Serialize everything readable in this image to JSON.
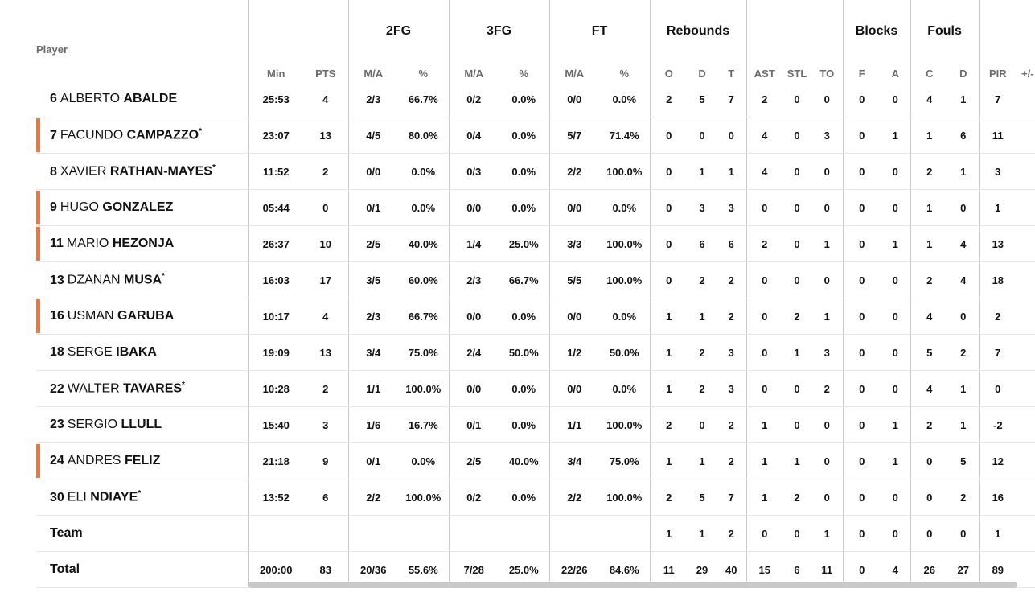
{
  "groups": [
    "2FG",
    "3FG",
    "FT",
    "Rebounds",
    "Blocks",
    "Fouls"
  ],
  "columns": {
    "player": "Player",
    "min": "Min",
    "pts": "PTS",
    "fg2_ma": "M/A",
    "fg2_pct": "%",
    "fg3_ma": "M/A",
    "fg3_pct": "%",
    "ft_ma": "M/A",
    "ft_pct": "%",
    "reb_o": "O",
    "reb_d": "D",
    "reb_t": "T",
    "ast": "AST",
    "stl": "STL",
    "to": "TO",
    "blk_f": "F",
    "blk_a": "A",
    "foul_c": "C",
    "foul_d": "D",
    "pir": "PIR",
    "pm": "+/-"
  },
  "players": [
    {
      "num": "6",
      "first": "ALBERTO",
      "last": "ABALDE",
      "star": "",
      "bar": false,
      "min": "25:53",
      "pts": "4",
      "fg2_ma": "2/3",
      "fg2_pct": "66.7%",
      "fg3_ma": "0/2",
      "fg3_pct": "0.0%",
      "ft_ma": "0/0",
      "ft_pct": "0.0%",
      "reb_o": "2",
      "reb_d": "5",
      "reb_t": "7",
      "ast": "2",
      "stl": "0",
      "to": "0",
      "blk_f": "0",
      "blk_a": "0",
      "foul_c": "4",
      "foul_d": "1",
      "pir": "7"
    },
    {
      "num": "7",
      "first": "FACUNDO",
      "last": "CAMPAZZO",
      "star": "*",
      "bar": true,
      "min": "23:07",
      "pts": "13",
      "fg2_ma": "4/5",
      "fg2_pct": "80.0%",
      "fg3_ma": "0/4",
      "fg3_pct": "0.0%",
      "ft_ma": "5/7",
      "ft_pct": "71.4%",
      "reb_o": "0",
      "reb_d": "0",
      "reb_t": "0",
      "ast": "4",
      "stl": "0",
      "to": "3",
      "blk_f": "0",
      "blk_a": "1",
      "foul_c": "1",
      "foul_d": "6",
      "pir": "11"
    },
    {
      "num": "8",
      "first": "XAVIER",
      "last": "RATHAN-MAYES",
      "star": "*",
      "bar": false,
      "min": "11:52",
      "pts": "2",
      "fg2_ma": "0/0",
      "fg2_pct": "0.0%",
      "fg3_ma": "0/3",
      "fg3_pct": "0.0%",
      "ft_ma": "2/2",
      "ft_pct": "100.0%",
      "reb_o": "0",
      "reb_d": "1",
      "reb_t": "1",
      "ast": "4",
      "stl": "0",
      "to": "0",
      "blk_f": "0",
      "blk_a": "0",
      "foul_c": "2",
      "foul_d": "1",
      "pir": "3"
    },
    {
      "num": "9",
      "first": "HUGO",
      "last": "GONZALEZ",
      "star": "",
      "bar": true,
      "min": "05:44",
      "pts": "0",
      "fg2_ma": "0/1",
      "fg2_pct": "0.0%",
      "fg3_ma": "0/0",
      "fg3_pct": "0.0%",
      "ft_ma": "0/0",
      "ft_pct": "0.0%",
      "reb_o": "0",
      "reb_d": "3",
      "reb_t": "3",
      "ast": "0",
      "stl": "0",
      "to": "0",
      "blk_f": "0",
      "blk_a": "0",
      "foul_c": "1",
      "foul_d": "0",
      "pir": "1"
    },
    {
      "num": "11",
      "first": "MARIO",
      "last": "HEZONJA",
      "star": "",
      "bar": true,
      "min": "26:37",
      "pts": "10",
      "fg2_ma": "2/5",
      "fg2_pct": "40.0%",
      "fg3_ma": "1/4",
      "fg3_pct": "25.0%",
      "ft_ma": "3/3",
      "ft_pct": "100.0%",
      "reb_o": "0",
      "reb_d": "6",
      "reb_t": "6",
      "ast": "2",
      "stl": "0",
      "to": "1",
      "blk_f": "0",
      "blk_a": "1",
      "foul_c": "1",
      "foul_d": "4",
      "pir": "13"
    },
    {
      "num": "13",
      "first": "DZANAN",
      "last": "MUSA",
      "star": "*",
      "bar": false,
      "min": "16:03",
      "pts": "17",
      "fg2_ma": "3/5",
      "fg2_pct": "60.0%",
      "fg3_ma": "2/3",
      "fg3_pct": "66.7%",
      "ft_ma": "5/5",
      "ft_pct": "100.0%",
      "reb_o": "0",
      "reb_d": "2",
      "reb_t": "2",
      "ast": "0",
      "stl": "0",
      "to": "0",
      "blk_f": "0",
      "blk_a": "0",
      "foul_c": "2",
      "foul_d": "4",
      "pir": "18"
    },
    {
      "num": "16",
      "first": "USMAN",
      "last": "GARUBA",
      "star": "",
      "bar": true,
      "min": "10:17",
      "pts": "4",
      "fg2_ma": "2/3",
      "fg2_pct": "66.7%",
      "fg3_ma": "0/0",
      "fg3_pct": "0.0%",
      "ft_ma": "0/0",
      "ft_pct": "0.0%",
      "reb_o": "1",
      "reb_d": "1",
      "reb_t": "2",
      "ast": "0",
      "stl": "2",
      "to": "1",
      "blk_f": "0",
      "blk_a": "0",
      "foul_c": "4",
      "foul_d": "0",
      "pir": "2"
    },
    {
      "num": "18",
      "first": "SERGE",
      "last": "IBAKA",
      "star": "",
      "bar": false,
      "min": "19:09",
      "pts": "13",
      "fg2_ma": "3/4",
      "fg2_pct": "75.0%",
      "fg3_ma": "2/4",
      "fg3_pct": "50.0%",
      "ft_ma": "1/2",
      "ft_pct": "50.0%",
      "reb_o": "1",
      "reb_d": "2",
      "reb_t": "3",
      "ast": "0",
      "stl": "1",
      "to": "3",
      "blk_f": "0",
      "blk_a": "0",
      "foul_c": "5",
      "foul_d": "2",
      "pir": "7"
    },
    {
      "num": "22",
      "first": "WALTER",
      "last": "TAVARES",
      "star": "*",
      "bar": false,
      "min": "10:28",
      "pts": "2",
      "fg2_ma": "1/1",
      "fg2_pct": "100.0%",
      "fg3_ma": "0/0",
      "fg3_pct": "0.0%",
      "ft_ma": "0/0",
      "ft_pct": "0.0%",
      "reb_o": "1",
      "reb_d": "2",
      "reb_t": "3",
      "ast": "0",
      "stl": "0",
      "to": "2",
      "blk_f": "0",
      "blk_a": "0",
      "foul_c": "4",
      "foul_d": "1",
      "pir": "0"
    },
    {
      "num": "23",
      "first": "SERGIO",
      "last": "LLULL",
      "star": "",
      "bar": false,
      "min": "15:40",
      "pts": "3",
      "fg2_ma": "1/6",
      "fg2_pct": "16.7%",
      "fg3_ma": "0/1",
      "fg3_pct": "0.0%",
      "ft_ma": "1/1",
      "ft_pct": "100.0%",
      "reb_o": "2",
      "reb_d": "0",
      "reb_t": "2",
      "ast": "1",
      "stl": "0",
      "to": "0",
      "blk_f": "0",
      "blk_a": "1",
      "foul_c": "2",
      "foul_d": "1",
      "pir": "-2"
    },
    {
      "num": "24",
      "first": "ANDRES",
      "last": "FELIZ",
      "star": "",
      "bar": true,
      "min": "21:18",
      "pts": "9",
      "fg2_ma": "0/1",
      "fg2_pct": "0.0%",
      "fg3_ma": "2/5",
      "fg3_pct": "40.0%",
      "ft_ma": "3/4",
      "ft_pct": "75.0%",
      "reb_o": "1",
      "reb_d": "1",
      "reb_t": "2",
      "ast": "1",
      "stl": "1",
      "to": "0",
      "blk_f": "0",
      "blk_a": "1",
      "foul_c": "0",
      "foul_d": "5",
      "pir": "12"
    },
    {
      "num": "30",
      "first": "ELI",
      "last": "NDIAYE",
      "star": "*",
      "bar": false,
      "min": "13:52",
      "pts": "6",
      "fg2_ma": "2/2",
      "fg2_pct": "100.0%",
      "fg3_ma": "0/2",
      "fg3_pct": "0.0%",
      "ft_ma": "2/2",
      "ft_pct": "100.0%",
      "reb_o": "2",
      "reb_d": "5",
      "reb_t": "7",
      "ast": "1",
      "stl": "2",
      "to": "0",
      "blk_f": "0",
      "blk_a": "0",
      "foul_c": "0",
      "foul_d": "2",
      "pir": "16"
    }
  ],
  "team": {
    "label": "Team",
    "min": "",
    "pts": "",
    "fg2_ma": "",
    "fg2_pct": "",
    "fg3_ma": "",
    "fg3_pct": "",
    "ft_ma": "",
    "ft_pct": "",
    "reb_o": "1",
    "reb_d": "1",
    "reb_t": "2",
    "ast": "0",
    "stl": "0",
    "to": "1",
    "blk_f": "0",
    "blk_a": "0",
    "foul_c": "0",
    "foul_d": "0",
    "pir": "1"
  },
  "total": {
    "label": "Total",
    "min": "200:00",
    "pts": "83",
    "fg2_ma": "20/36",
    "fg2_pct": "55.6%",
    "fg3_ma": "7/28",
    "fg3_pct": "25.0%",
    "ft_ma": "22/26",
    "ft_pct": "84.6%",
    "reb_o": "11",
    "reb_d": "29",
    "reb_t": "40",
    "ast": "15",
    "stl": "6",
    "to": "11",
    "blk_f": "0",
    "blk_a": "4",
    "foul_c": "26",
    "foul_d": "27",
    "pir": "89"
  },
  "bar_color": "#f47339"
}
